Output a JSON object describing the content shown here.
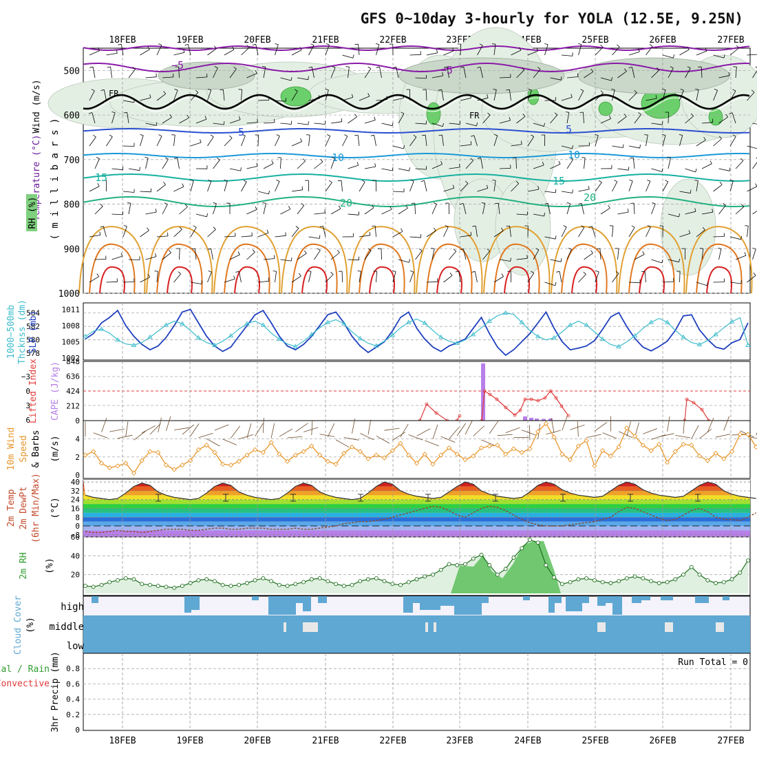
{
  "title": "GFS 0~10day 3-hourly for YOLA (12.5E, 9.25N)",
  "dates": [
    "18FEB",
    "19FEB",
    "20FEB",
    "21FEB",
    "22FEB",
    "23FEB",
    "24FEB",
    "25FEB",
    "26FEB",
    "27FEB"
  ],
  "colors": {
    "cloud": "#5fa8d3",
    "rh": "#2e9e2e",
    "wind10m": "#e8962a",
    "slp": "#1f3fbf",
    "thickness": "#3cbccc",
    "cape": "#b77fe8",
    "lifted": "#e23a3a"
  },
  "labels": {
    "upper_wind": "Wind (m/s)",
    "upper_temp": "Temperature (°C)",
    "upper_rh": "RH (%)",
    "upper_mb": "( m i l l i b a r s )",
    "thick_label": "1000−500mb",
    "thick_label2": "Thcknss (dm)",
    "slp_label": "SLP (mb)",
    "li_label": "Lifted Index",
    "cape_label": "CAPE (J/kg)",
    "wind_label1": "10m Wind",
    "wind_label2": "Speed",
    "wind_label3": "& Barbs",
    "wind_unit": "(m/s)",
    "temp_label1": "2m Temp",
    "temp_label2": "2m DewPt",
    "temp_label3": "(6hr Min/Max)",
    "temp_unit": "(°C)",
    "rh_label": "2m RH",
    "rh_unit": "(%)",
    "cloud_label": "Cloud Cover",
    "cloud_unit": "(%)",
    "cloud_high": "high",
    "cloud_middle": "middle",
    "cloud_low": "low",
    "precip_label1": "tal / Rain",
    "precip_label2": "Convective",
    "precip_label3": "3hr Precip (mm)",
    "run_total": "Run Total = 0",
    "fr1": "FR",
    "fr2": "FR"
  },
  "chart_data": [
    {
      "type": "area",
      "panel": "upper-air",
      "ylabel": "( m i l l i b a r s )",
      "y_ticks": [
        500,
        600,
        700,
        800,
        900,
        1000
      ],
      "ylim": [
        1000,
        450
      ],
      "isotherm_labels": [
        "−5",
        "−5",
        "5",
        "5",
        "10",
        "10",
        "15",
        "15",
        "20",
        "20"
      ],
      "freezing_label": "FR"
    },
    {
      "type": "line",
      "panel": "thickness-slp",
      "y_ticks_left": [
        578,
        580,
        582,
        584
      ],
      "y_ticks_right": [
        1002,
        1005,
        1008,
        1011
      ],
      "series": [
        {
          "name": "SLP (mb)",
          "values": [
            1005.5,
            1006.5,
            1008.5,
            1009.5,
            1010.8,
            1008,
            1006,
            1004.5,
            1003.5,
            1004.2,
            1005.8,
            1008,
            1010.5,
            1011,
            1008.5,
            1006,
            1004.2,
            1003.2,
            1004,
            1006,
            1008,
            1010,
            1010.8,
            1008.5,
            1006,
            1004.2,
            1003.5,
            1004.5,
            1006,
            1008,
            1010,
            1010.5,
            1008.5,
            1006,
            1004.2,
            1003,
            1004,
            1005,
            1007,
            1009.5,
            1010.5,
            1007.5,
            1005.5,
            1004,
            1003.2,
            1004.2,
            1004.8,
            1005.5,
            1007.5,
            1009.5,
            1006.5,
            1004,
            1002.5,
            1003.5,
            1005,
            1006.5,
            1008.5,
            1010.5,
            1007.5,
            1005,
            1003.5,
            1003.8,
            1004.2,
            1005.2,
            1007.3,
            1009.6,
            1010.4,
            1007.8,
            1005.6,
            1004,
            1003.3,
            1004.1,
            1005.1,
            1007.1,
            1009.8,
            1010,
            1007.2,
            1005.4,
            1004,
            1003.6,
            1004.8,
            1005.4,
            1008.5
          ]
        },
        {
          "name": "1000−500mb Thcknss (dm)",
          "values": [
            580.5,
            581.3,
            581.6,
            581,
            580,
            579.4,
            579.2,
            579.6,
            580.4,
            581.3,
            582.2,
            582.8,
            582.4,
            581.4,
            580.3,
            579.6,
            579.2,
            579.8,
            580.6,
            581.6,
            582.4,
            582.8,
            582.2,
            581,
            580.1,
            579.4,
            579,
            579.8,
            580.8,
            581.8,
            582.6,
            583,
            582.4,
            581.2,
            580.2,
            579.5,
            579.1,
            579.8,
            580.7,
            581.8,
            582.6,
            583.1,
            582.5,
            581.4,
            580.4,
            579.8,
            579.5,
            580,
            580.8,
            581.8,
            582.8,
            583.6,
            584,
            583.8,
            582.6,
            581.4,
            580.5,
            580,
            580.3,
            581.2,
            582.2,
            582.8,
            582.2,
            581.2,
            580.1,
            579.3,
            579,
            579.7,
            580.6,
            581.7,
            582.6,
            583.2,
            582.6,
            581.4,
            580.4,
            579.6,
            579.3,
            579.9,
            580.8,
            581.8,
            582.7,
            583.3,
            579.2
          ]
        }
      ]
    },
    {
      "type": "bar",
      "panel": "cape-lifted-index",
      "y_ticks_left": [
        6,
        3,
        0,
        -3
      ],
      "y_ticks_right": [
        0,
        212,
        424,
        636,
        848
      ],
      "series": [
        {
          "name": "Lifted Index",
          "x": [
            "23FEB",
            "23FEB",
            "23FEB",
            "24FEB",
            "24FEB",
            "24FEB",
            "24FEB",
            "26FEB"
          ],
          "values": [
            3.5,
            -1,
            0.5,
            1.2,
            1.2,
            1.0,
            1.5,
            1.0
          ]
        },
        {
          "name": "CAPE (J/kg)",
          "values": [
            820,
            60,
            40,
            30,
            25,
            30
          ]
        }
      ]
    },
    {
      "type": "line",
      "panel": "10m-wind",
      "y_ticks": [
        0,
        2,
        4
      ],
      "ylim": [
        0,
        6
      ],
      "series": [
        {
          "name": "10m Wind Speed",
          "values": [
            2.2,
            2.6,
            1.3,
            0.8,
            1,
            1.3,
            0.2,
            1.6,
            2.6,
            2.5,
            1.1,
            0.6,
            1.1,
            1.6,
            2.8,
            3.3,
            2.5,
            1.2,
            1.1,
            1.5,
            2.2,
            2.8,
            2.5,
            3.6,
            2.3,
            1.5,
            2.2,
            2.6,
            3.2,
            2.2,
            1.5,
            1.2,
            2.4,
            3.1,
            2.6,
            1.8,
            2.2,
            1.9,
            2.7,
            3.5,
            2.2,
            1.3,
            2.3,
            1.2,
            2.2,
            3.0,
            2.3,
            1.7,
            2.1,
            3.0,
            3.2,
            3.3,
            2.3,
            2.9,
            2.5,
            2.9,
            4.8,
            5.7,
            4.2,
            2.3,
            1.7,
            3.2,
            3.8,
            1.0,
            2.7,
            2.1,
            3.1,
            5.2,
            4.3,
            3.3,
            2.7,
            3.4,
            1.4,
            2.6,
            3.4,
            3.3,
            2.1,
            1.6,
            2.4,
            1.8,
            2.6,
            4.5,
            4.5,
            3.1,
            2.2,
            2.4,
            2.4,
            2.6
          ]
        }
      ]
    },
    {
      "type": "area",
      "panel": "2m-temp-dewpt",
      "y_ticks": [
        -8,
        0,
        8,
        16,
        24,
        32,
        40
      ],
      "series": [
        {
          "name": "2m Temp",
          "values": [
            28,
            26,
            25,
            24,
            25,
            30,
            36,
            39,
            37,
            31,
            28,
            26,
            25,
            24,
            25,
            30,
            36,
            39,
            37,
            31,
            28,
            26,
            25,
            24,
            25,
            30,
            36,
            39,
            37,
            31,
            28,
            26,
            25,
            24,
            25,
            30,
            36,
            40,
            38,
            32,
            29,
            27,
            26,
            25,
            26,
            31,
            36,
            40,
            38,
            32,
            29,
            27,
            26,
            25,
            26,
            31,
            37,
            40,
            38,
            33,
            30,
            28,
            27,
            26,
            27,
            32,
            37,
            40,
            38,
            33,
            30,
            28,
            27,
            26,
            27,
            32,
            37,
            40,
            38,
            32,
            29,
            27,
            26,
            25
          ]
        },
        {
          "name": "2m DewPt",
          "values": [
            -5,
            -6,
            -6,
            -5,
            -4,
            -5,
            -5,
            -6,
            -5,
            -4,
            -3,
            -3,
            -3,
            -4,
            -4,
            -3,
            -2,
            -2,
            -3,
            -3,
            -2,
            -2,
            -2,
            -3,
            -3,
            -3,
            -2,
            -3,
            -3,
            -2,
            -1,
            0,
            2,
            3,
            4,
            4,
            5,
            6,
            8,
            10,
            12,
            14,
            16,
            18,
            17,
            14,
            10,
            8,
            12,
            16,
            18,
            17,
            14,
            10,
            6,
            3,
            1,
            0,
            0,
            0,
            1,
            2,
            3,
            4,
            6,
            8,
            13,
            17,
            16,
            13,
            10,
            7,
            5,
            6,
            10,
            14,
            16,
            13,
            8,
            6,
            6,
            5,
            8,
            12
          ]
        }
      ]
    },
    {
      "type": "area",
      "panel": "2m-rh",
      "y_ticks": [
        20,
        40,
        60
      ],
      "series": [
        {
          "name": "2m RH",
          "values": [
            8,
            7,
            9,
            12,
            14,
            16,
            15,
            10,
            9,
            8,
            7,
            6,
            8,
            11,
            14,
            15,
            13,
            9,
            8,
            9,
            11,
            14,
            16,
            13,
            9,
            8,
            10,
            12,
            15,
            16,
            13,
            10,
            8,
            9,
            13,
            15,
            16,
            13,
            10,
            9,
            12,
            15,
            18,
            20,
            25,
            31,
            30,
            31,
            37,
            41,
            30,
            20,
            26,
            38,
            48,
            57,
            54,
            30,
            17,
            10,
            12,
            15,
            16,
            14,
            12,
            11,
            13,
            16,
            18,
            16,
            13,
            11,
            12,
            15,
            20,
            28,
            20,
            14,
            11,
            12,
            15,
            22,
            35
          ]
        }
      ]
    },
    {
      "type": "heatmap",
      "panel": "cloud-cover",
      "rows": [
        "high",
        "middle",
        "low"
      ]
    },
    {
      "type": "bar",
      "panel": "3hr-precip",
      "y_ticks": [
        0,
        0.2,
        0.4,
        0.6,
        0.8
      ],
      "ylim": [
        0,
        1
      ],
      "series": [
        {
          "name": "Total / Rain"
        },
        {
          "name": "Convective"
        }
      ]
    }
  ]
}
